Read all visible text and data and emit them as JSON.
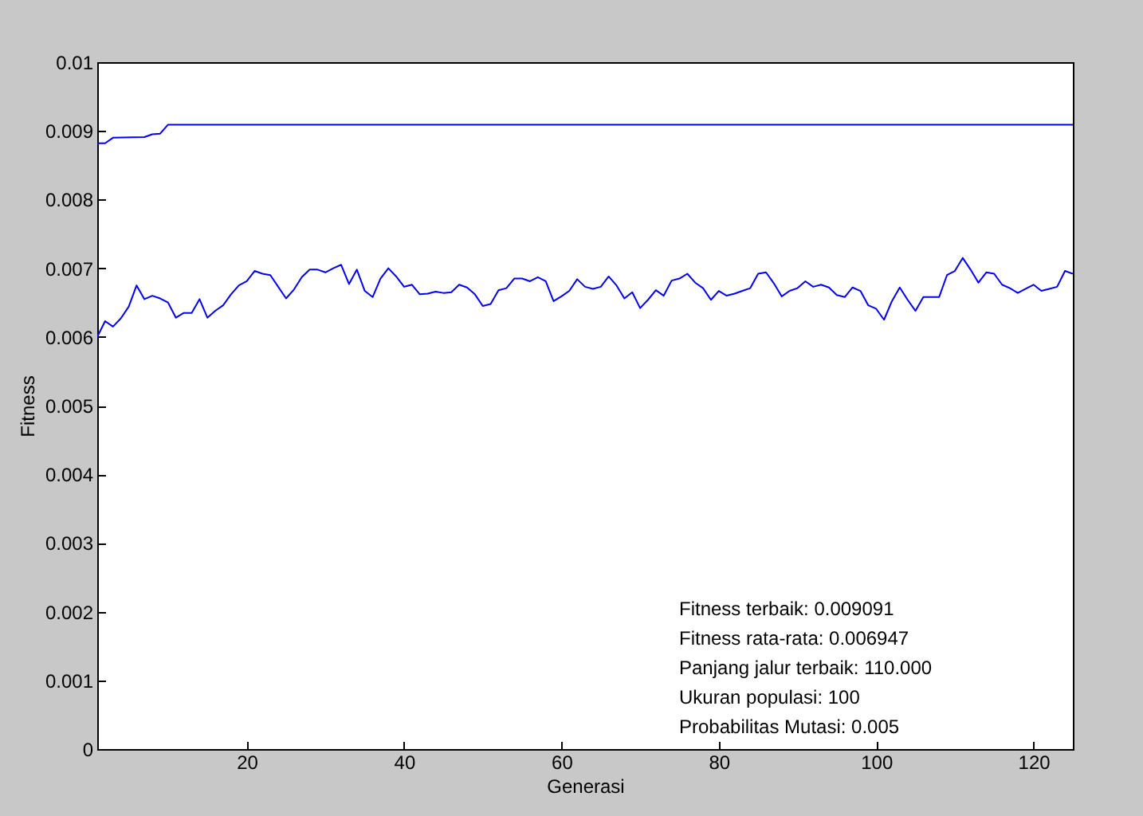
{
  "chart_data": {
    "type": "line",
    "xlabel": "Generasi",
    "ylabel": "Fitness",
    "xlim": [
      1,
      125
    ],
    "xticks": [
      20,
      40,
      60,
      80,
      100,
      120
    ],
    "ylim": [
      0,
      0.01
    ],
    "yticks": [
      0,
      0.001,
      0.002,
      0.003,
      0.004,
      0.005,
      0.006,
      0.007,
      0.008,
      0.009,
      0.01
    ],
    "grid": false,
    "legend": false,
    "marker": "none",
    "line_style": "solid",
    "annotations": [
      "Fitness terbaik: 0.009091",
      "Fitness rata-rata: 0.006947",
      "Panjang jalur terbaik: 110.000",
      "Ukuran populasi: 100",
      "Probabilitas Mutasi: 0.005"
    ],
    "series": [
      {
        "color": "#0000ff",
        "x": [
          1,
          2,
          3,
          7,
          8,
          9,
          10,
          125
        ],
        "values": [
          0.00882,
          0.00882,
          0.0089,
          0.00891,
          0.00895,
          0.00896,
          0.00909,
          0.00909
        ]
      },
      {
        "color": "#0000ff",
        "x": [
          1,
          2,
          3,
          4,
          5,
          6,
          7,
          8,
          9,
          10,
          11,
          12,
          13,
          14,
          15,
          16,
          17,
          18,
          19,
          20,
          21,
          22,
          23,
          24,
          25,
          26,
          27,
          28,
          29,
          30,
          31,
          32,
          33,
          34,
          35,
          36,
          37,
          38,
          39,
          40,
          41,
          42,
          43,
          44,
          45,
          46,
          47,
          48,
          49,
          50,
          51,
          52,
          53,
          54,
          55,
          56,
          57,
          58,
          59,
          60,
          61,
          62,
          63,
          64,
          65,
          66,
          67,
          68,
          69,
          70,
          71,
          72,
          73,
          74,
          75,
          76,
          77,
          78,
          79,
          80,
          81,
          82,
          83,
          84,
          85,
          86,
          87,
          88,
          89,
          90,
          91,
          92,
          93,
          94,
          95,
          96,
          97,
          98,
          99,
          100,
          101,
          102,
          103,
          104,
          105,
          106,
          107,
          108,
          109,
          110,
          111,
          112,
          113,
          114,
          115,
          116,
          117,
          118,
          119,
          120,
          121,
          122,
          123,
          124,
          125
        ],
        "values": [
          0.006,
          0.00623,
          0.00615,
          0.00627,
          0.00644,
          0.00675,
          0.00655,
          0.0066,
          0.00656,
          0.0065,
          0.00628,
          0.00635,
          0.00635,
          0.00655,
          0.00628,
          0.00638,
          0.00646,
          0.00662,
          0.00675,
          0.00681,
          0.00696,
          0.00692,
          0.0069,
          0.00673,
          0.00656,
          0.00669,
          0.00687,
          0.00698,
          0.00698,
          0.00694,
          0.007,
          0.00705,
          0.00677,
          0.00698,
          0.00667,
          0.00658,
          0.00685,
          0.007,
          0.00688,
          0.00673,
          0.00676,
          0.00662,
          0.00663,
          0.00666,
          0.00664,
          0.00665,
          0.00676,
          0.00672,
          0.00662,
          0.00645,
          0.00648,
          0.00668,
          0.00671,
          0.00685,
          0.00685,
          0.00681,
          0.00687,
          0.00681,
          0.00652,
          0.00659,
          0.00667,
          0.00684,
          0.00673,
          0.0067,
          0.00673,
          0.00688,
          0.00675,
          0.00656,
          0.00665,
          0.00642,
          0.00654,
          0.00668,
          0.0066,
          0.00682,
          0.00685,
          0.00692,
          0.00679,
          0.00671,
          0.00654,
          0.00667,
          0.0066,
          0.00663,
          0.00667,
          0.00671,
          0.00692,
          0.00694,
          0.00678,
          0.00659,
          0.00667,
          0.00671,
          0.00681,
          0.00673,
          0.00676,
          0.00672,
          0.00661,
          0.00658,
          0.00672,
          0.00667,
          0.00646,
          0.00641,
          0.00625,
          0.00652,
          0.00672,
          0.00654,
          0.00638,
          0.00658,
          0.00658,
          0.00658,
          0.0069,
          0.00696,
          0.00715,
          0.00698,
          0.00679,
          0.00694,
          0.00692,
          0.00676,
          0.00671,
          0.00664,
          0.0067,
          0.00676,
          0.00667,
          0.0067,
          0.00673,
          0.00696,
          0.00692
        ]
      }
    ]
  }
}
